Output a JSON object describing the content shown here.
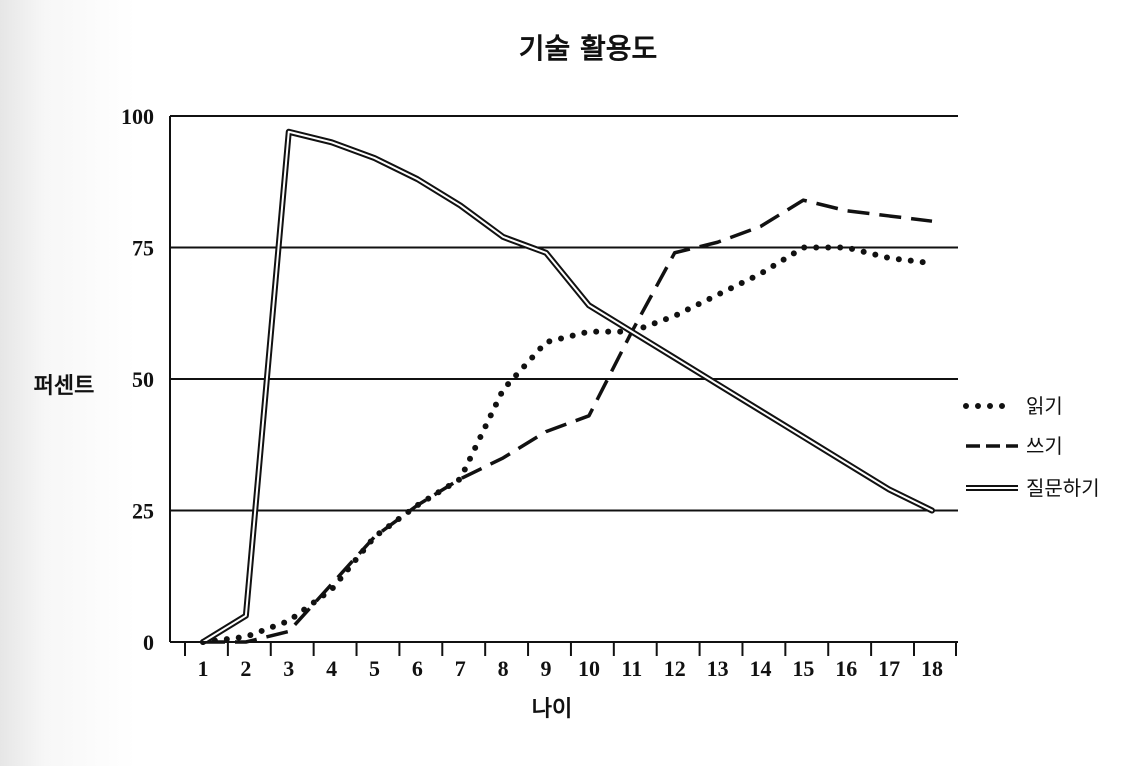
{
  "chart_data": {
    "type": "line",
    "title": "기술 활용도",
    "xlabel": "나이",
    "ylabel": "퍼센트",
    "x": [
      1,
      2,
      3,
      4,
      5,
      6,
      7,
      8,
      9,
      10,
      11,
      12,
      13,
      14,
      15,
      16,
      17,
      18
    ],
    "x_tick_labels": [
      "1",
      "2",
      "3",
      "4",
      "5",
      "6",
      "7",
      "8",
      "9",
      "10",
      "11",
      "12",
      "13",
      "14",
      "15",
      "16",
      "17",
      "18"
    ],
    "y_ticks": [
      0,
      25,
      50,
      75,
      100
    ],
    "y_tick_labels": [
      "0",
      "25",
      "50",
      "75",
      "100"
    ],
    "xlim": [
      1,
      18
    ],
    "ylim": [
      0,
      100
    ],
    "grid": "horizontal",
    "legend_position": "right",
    "series": [
      {
        "name": "읽기",
        "style": "dotted",
        "color": "#111111",
        "values": [
          0,
          1,
          4,
          10,
          20,
          26,
          31,
          48,
          57,
          59,
          59,
          62,
          66,
          70,
          75,
          75,
          73,
          72
        ]
      },
      {
        "name": "쓰기",
        "style": "dashed",
        "color": "#111111",
        "values": [
          0,
          0,
          2,
          11,
          20,
          26,
          31,
          35,
          40,
          43,
          59,
          74,
          76,
          79,
          84,
          82,
          81,
          80
        ]
      },
      {
        "name": "질문하기",
        "style": "double",
        "color": "#111111",
        "values": [
          0,
          5,
          97,
          95,
          92,
          88,
          83,
          77,
          74,
          64,
          59,
          54,
          49,
          44,
          39,
          34,
          29,
          25
        ]
      }
    ]
  }
}
